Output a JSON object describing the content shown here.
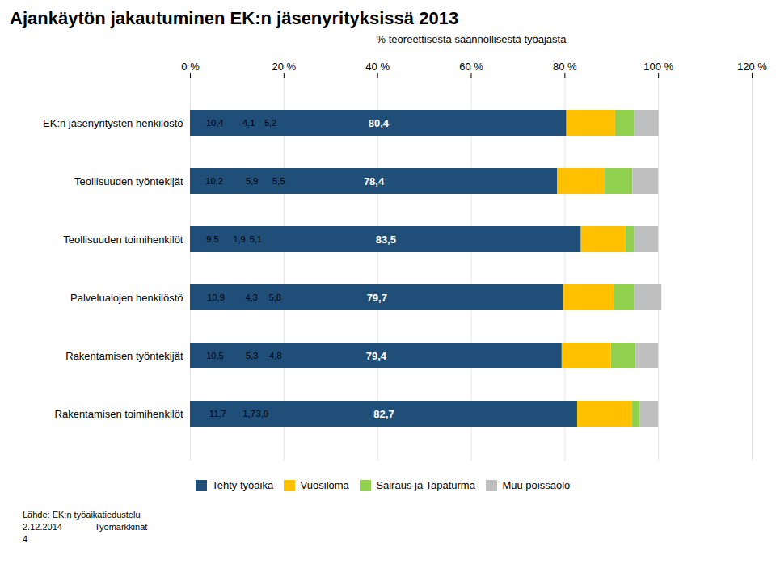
{
  "chart_data": {
    "type": "bar",
    "orientation": "horizontal",
    "stacked": true,
    "title": "Ajankäytön jakautuminen EK:n jäsenyrityksissä 2013",
    "xlabel": "% teoreettisesta säännöllisestä työajasta",
    "categories": [
      "EK:n jäsenyritysten henkilöstö",
      "Teollisuuden työntekijät",
      "Teollisuuden toimihenkilöt",
      "Palvelualojen henkilöstö",
      "Rakentamisen työntekijät",
      "Rakentamisen toimihenkilöt"
    ],
    "series": [
      {
        "name": "Tehty työaika",
        "color": "#1F4E79",
        "values": [
          80.4,
          78.4,
          83.5,
          79.7,
          79.4,
          82.7
        ],
        "value_labels": [
          "80,4",
          "78,4",
          "83,5",
          "79,7",
          "79,4",
          "82,7"
        ]
      },
      {
        "name": "Vuosiloma",
        "color": "#FFC000",
        "values": [
          10.4,
          10.2,
          9.5,
          10.9,
          10.5,
          11.7
        ],
        "value_labels": [
          "10,4",
          "10,2",
          "9,5",
          "10,9",
          "10,5",
          "11,7"
        ]
      },
      {
        "name": "Sairaus ja Tapaturma",
        "color": "#92D050",
        "values": [
          4.1,
          5.9,
          1.9,
          4.3,
          5.3,
          1.7
        ],
        "value_labels": [
          "4,1",
          "5,9",
          "1,9",
          "4,3",
          "5,3",
          "1,7"
        ]
      },
      {
        "name": "Muu poissaolo",
        "color": "#BFBFBF",
        "values": [
          5.2,
          5.5,
          5.1,
          5.8,
          4.8,
          3.9
        ],
        "value_labels": [
          "5,2",
          "5,5",
          "5,1",
          "5,8",
          "4,8",
          "3,9"
        ]
      }
    ],
    "xlim": [
      0,
      120
    ],
    "xticks": [
      {
        "value": 0,
        "label": "0 %"
      },
      {
        "value": 20,
        "label": "20 %"
      },
      {
        "value": 40,
        "label": "40 %"
      },
      {
        "value": 60,
        "label": "60 %"
      },
      {
        "value": 80,
        "label": "80 %"
      },
      {
        "value": 100,
        "label": "100 %"
      },
      {
        "value": 120,
        "label": "120 %"
      }
    ],
    "grid": true,
    "legend": "bottom",
    "data_labels": true,
    "annotations": [
      "Lähde: EK:n työaikatiedustelu",
      "2.12.2014",
      "Työmarkkinat",
      "4"
    ]
  }
}
